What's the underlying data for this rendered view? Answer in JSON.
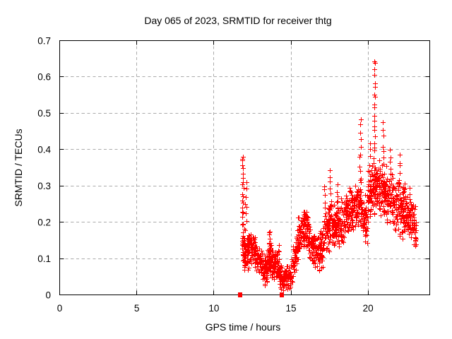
{
  "window": {
    "background": "#ffffff"
  },
  "colors": {
    "marker": "#ff0000",
    "grid": "#ababab",
    "axis": "#000000",
    "text": "#000000"
  },
  "chart_data": {
    "type": "scatter",
    "title": "Day 065 of 2023, SRMTID for receiver thtg",
    "xlabel": "GPS time / hours",
    "ylabel": "SRMTID / TECUs",
    "xlim": [
      0,
      24
    ],
    "ylim": [
      0,
      0.7
    ],
    "xticks": [
      {
        "value": 0,
        "label": "0"
      },
      {
        "value": 5,
        "label": "5"
      },
      {
        "value": 10,
        "label": "10"
      },
      {
        "value": 15,
        "label": "15"
      },
      {
        "value": 20,
        "label": "20"
      }
    ],
    "yticks": [
      {
        "value": 0.0,
        "label": "0"
      },
      {
        "value": 0.1,
        "label": "0.1"
      },
      {
        "value": 0.2,
        "label": "0.2"
      },
      {
        "value": 0.3,
        "label": "0.3"
      },
      {
        "value": 0.4,
        "label": "0.4"
      },
      {
        "value": 0.5,
        "label": "0.5"
      },
      {
        "value": 0.6,
        "label": "0.6"
      },
      {
        "value": 0.7,
        "label": "0.7"
      }
    ],
    "grid": true,
    "marker": "plus-cross",
    "marker_color": "#ff0000",
    "series_name": "SRMTID",
    "summary": {
      "data_start_hour": 11.8,
      "data_end_hour": 23.1,
      "max_value": 0.65,
      "max_at_hour": 20.4,
      "min_value": 0.02,
      "min_at_hour": 14.5
    },
    "seed": 2023065,
    "segments": [
      {
        "t0": 11.82,
        "t1": 12.05,
        "v0": 0.14,
        "v1": 0.13,
        "s": 0.045,
        "n": 45
      },
      {
        "t0": 12.05,
        "t1": 12.45,
        "v0": 0.125,
        "v1": 0.125,
        "s": 0.035,
        "n": 55
      },
      {
        "t0": 12.45,
        "t1": 12.7,
        "v0": 0.13,
        "v1": 0.12,
        "s": 0.035,
        "n": 35
      },
      {
        "t0": 12.7,
        "t1": 13.45,
        "v0": 0.105,
        "v1": 0.06,
        "s": 0.028,
        "n": 95
      },
      {
        "t0": 13.45,
        "t1": 13.8,
        "v0": 0.095,
        "v1": 0.09,
        "s": 0.035,
        "n": 45
      },
      {
        "t0": 13.8,
        "t1": 14.1,
        "v0": 0.085,
        "v1": 0.08,
        "s": 0.03,
        "n": 40
      },
      {
        "t0": 14.1,
        "t1": 14.45,
        "v0": 0.07,
        "v1": 0.045,
        "s": 0.022,
        "n": 45
      },
      {
        "t0": 14.45,
        "t1": 15.0,
        "v0": 0.04,
        "v1": 0.05,
        "s": 0.022,
        "n": 70
      },
      {
        "t0": 15.0,
        "t1": 15.45,
        "v0": 0.07,
        "v1": 0.14,
        "s": 0.035,
        "n": 55
      },
      {
        "t0": 15.45,
        "t1": 16.1,
        "v0": 0.17,
        "v1": 0.19,
        "s": 0.038,
        "n": 90
      },
      {
        "t0": 16.1,
        "t1": 16.75,
        "v0": 0.15,
        "v1": 0.11,
        "s": 0.035,
        "n": 80
      },
      {
        "t0": 16.75,
        "t1": 17.1,
        "v0": 0.12,
        "v1": 0.14,
        "s": 0.045,
        "n": 45
      },
      {
        "t0": 17.1,
        "t1": 17.5,
        "v0": 0.16,
        "v1": 0.19,
        "s": 0.05,
        "n": 50
      },
      {
        "t0": 17.5,
        "t1": 18.4,
        "v0": 0.19,
        "v1": 0.2,
        "s": 0.045,
        "n": 110
      },
      {
        "t0": 18.4,
        "t1": 19.15,
        "v0": 0.21,
        "v1": 0.24,
        "s": 0.045,
        "n": 95
      },
      {
        "t0": 19.15,
        "t1": 19.5,
        "v0": 0.24,
        "v1": 0.26,
        "s": 0.05,
        "n": 45
      },
      {
        "t0": 19.5,
        "t1": 19.95,
        "v0": 0.22,
        "v1": 0.2,
        "s": 0.055,
        "n": 55
      },
      {
        "t0": 19.95,
        "t1": 20.3,
        "v0": 0.27,
        "v1": 0.3,
        "s": 0.05,
        "n": 45
      },
      {
        "t0": 20.3,
        "t1": 20.6,
        "v0": 0.29,
        "v1": 0.3,
        "s": 0.045,
        "n": 45
      },
      {
        "t0": 20.6,
        "t1": 21.0,
        "v0": 0.3,
        "v1": 0.29,
        "s": 0.05,
        "n": 55
      },
      {
        "t0": 21.0,
        "t1": 21.7,
        "v0": 0.28,
        "v1": 0.26,
        "s": 0.055,
        "n": 90
      },
      {
        "t0": 21.7,
        "t1": 22.35,
        "v0": 0.25,
        "v1": 0.23,
        "s": 0.055,
        "n": 85
      },
      {
        "t0": 22.35,
        "t1": 22.8,
        "v0": 0.24,
        "v1": 0.22,
        "s": 0.05,
        "n": 60
      },
      {
        "t0": 22.8,
        "t1": 23.12,
        "v0": 0.2,
        "v1": 0.19,
        "s": 0.045,
        "n": 40
      }
    ],
    "spike_columns": [
      {
        "t": 11.87,
        "v0": 0.19,
        "v1": 0.385,
        "n": 20
      },
      {
        "t": 12.08,
        "v0": 0.2,
        "v1": 0.31,
        "n": 7
      },
      {
        "t": 13.6,
        "v0": 0.08,
        "v1": 0.175,
        "n": 14
      },
      {
        "t": 14.17,
        "v0": 0.05,
        "v1": 0.135,
        "n": 12
      },
      {
        "t": 17.2,
        "v0": 0.2,
        "v1": 0.3,
        "n": 8
      },
      {
        "t": 17.55,
        "v0": 0.2,
        "v1": 0.34,
        "n": 10
      },
      {
        "t": 18.0,
        "v0": 0.22,
        "v1": 0.3,
        "n": 6
      },
      {
        "t": 19.5,
        "v0": 0.25,
        "v1": 0.48,
        "n": 14
      },
      {
        "t": 20.1,
        "v0": 0.32,
        "v1": 0.42,
        "n": 6
      },
      {
        "t": 20.42,
        "v0": 0.27,
        "v1": 0.648,
        "n": 26
      },
      {
        "t": 21.0,
        "v0": 0.3,
        "v1": 0.47,
        "n": 10
      },
      {
        "t": 21.45,
        "v0": 0.3,
        "v1": 0.4,
        "n": 7
      },
      {
        "t": 22.05,
        "v0": 0.28,
        "v1": 0.38,
        "n": 8
      }
    ],
    "zero_axis_markers": {
      "marker": "filled-square",
      "hours": [
        11.72,
        14.42
      ],
      "value": 0
    }
  }
}
